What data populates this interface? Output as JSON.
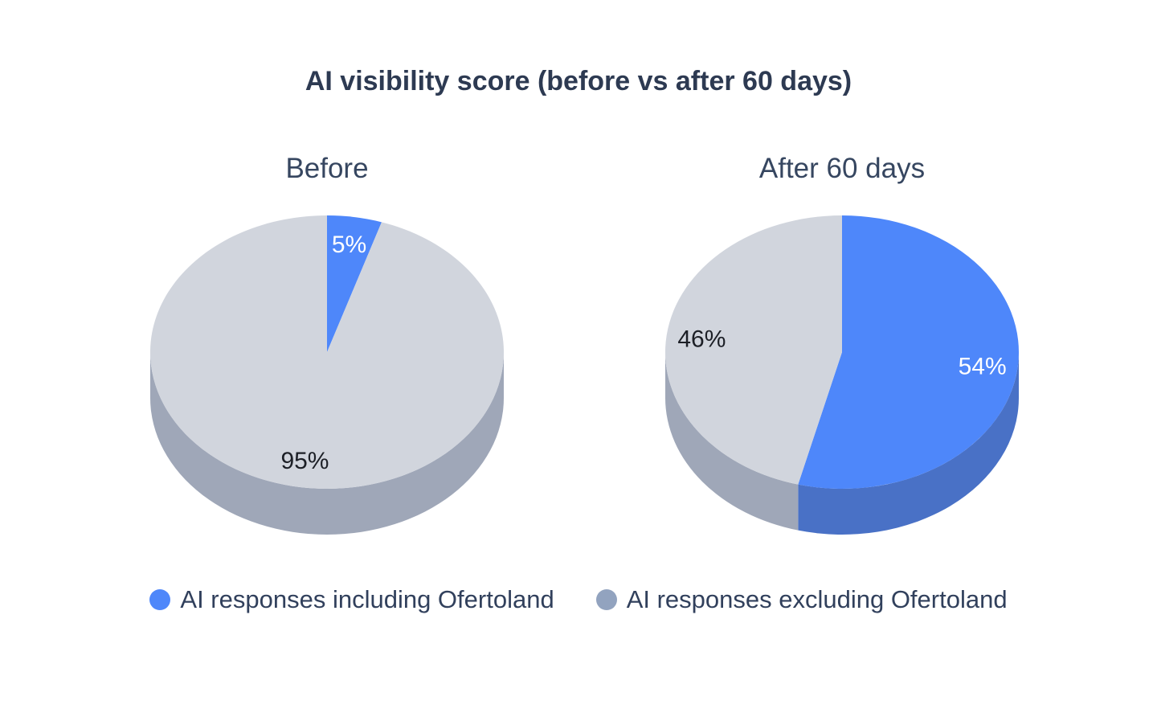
{
  "title": "AI visibility score (before vs after 60 days)",
  "legend": [
    {
      "label": "AI responses including Ofertoland",
      "color": "#4e87fa"
    },
    {
      "label": "AI responses excluding Ofertoland",
      "color": "#92a3bf"
    }
  ],
  "chart_data": [
    {
      "type": "pie",
      "title": "Before",
      "style": "3d",
      "start_angle_deg": -90,
      "direction": "clockwise",
      "labels": [
        "AI responses including Ofertoland",
        "AI responses excluding Ofertoland"
      ],
      "values": [
        5,
        95
      ],
      "value_labels": [
        "5%",
        "95%"
      ],
      "colors": [
        "#4e87fa",
        "#d1d5dd"
      ],
      "side_colors": [
        "#4971c6",
        "#9fa7b8"
      ],
      "label_colors": [
        "#ffffff",
        "#1c1f26"
      ]
    },
    {
      "type": "pie",
      "title": "After 60 days",
      "style": "3d",
      "start_angle_deg": -90,
      "direction": "clockwise",
      "labels": [
        "AI responses including Ofertoland",
        "AI responses excluding Ofertoland"
      ],
      "values": [
        54,
        46
      ],
      "value_labels": [
        "54%",
        "46%"
      ],
      "colors": [
        "#4e87fa",
        "#d1d5dd"
      ],
      "side_colors": [
        "#4971c6",
        "#9fa7b8"
      ],
      "label_colors": [
        "#ffffff",
        "#1c1f26"
      ]
    }
  ]
}
